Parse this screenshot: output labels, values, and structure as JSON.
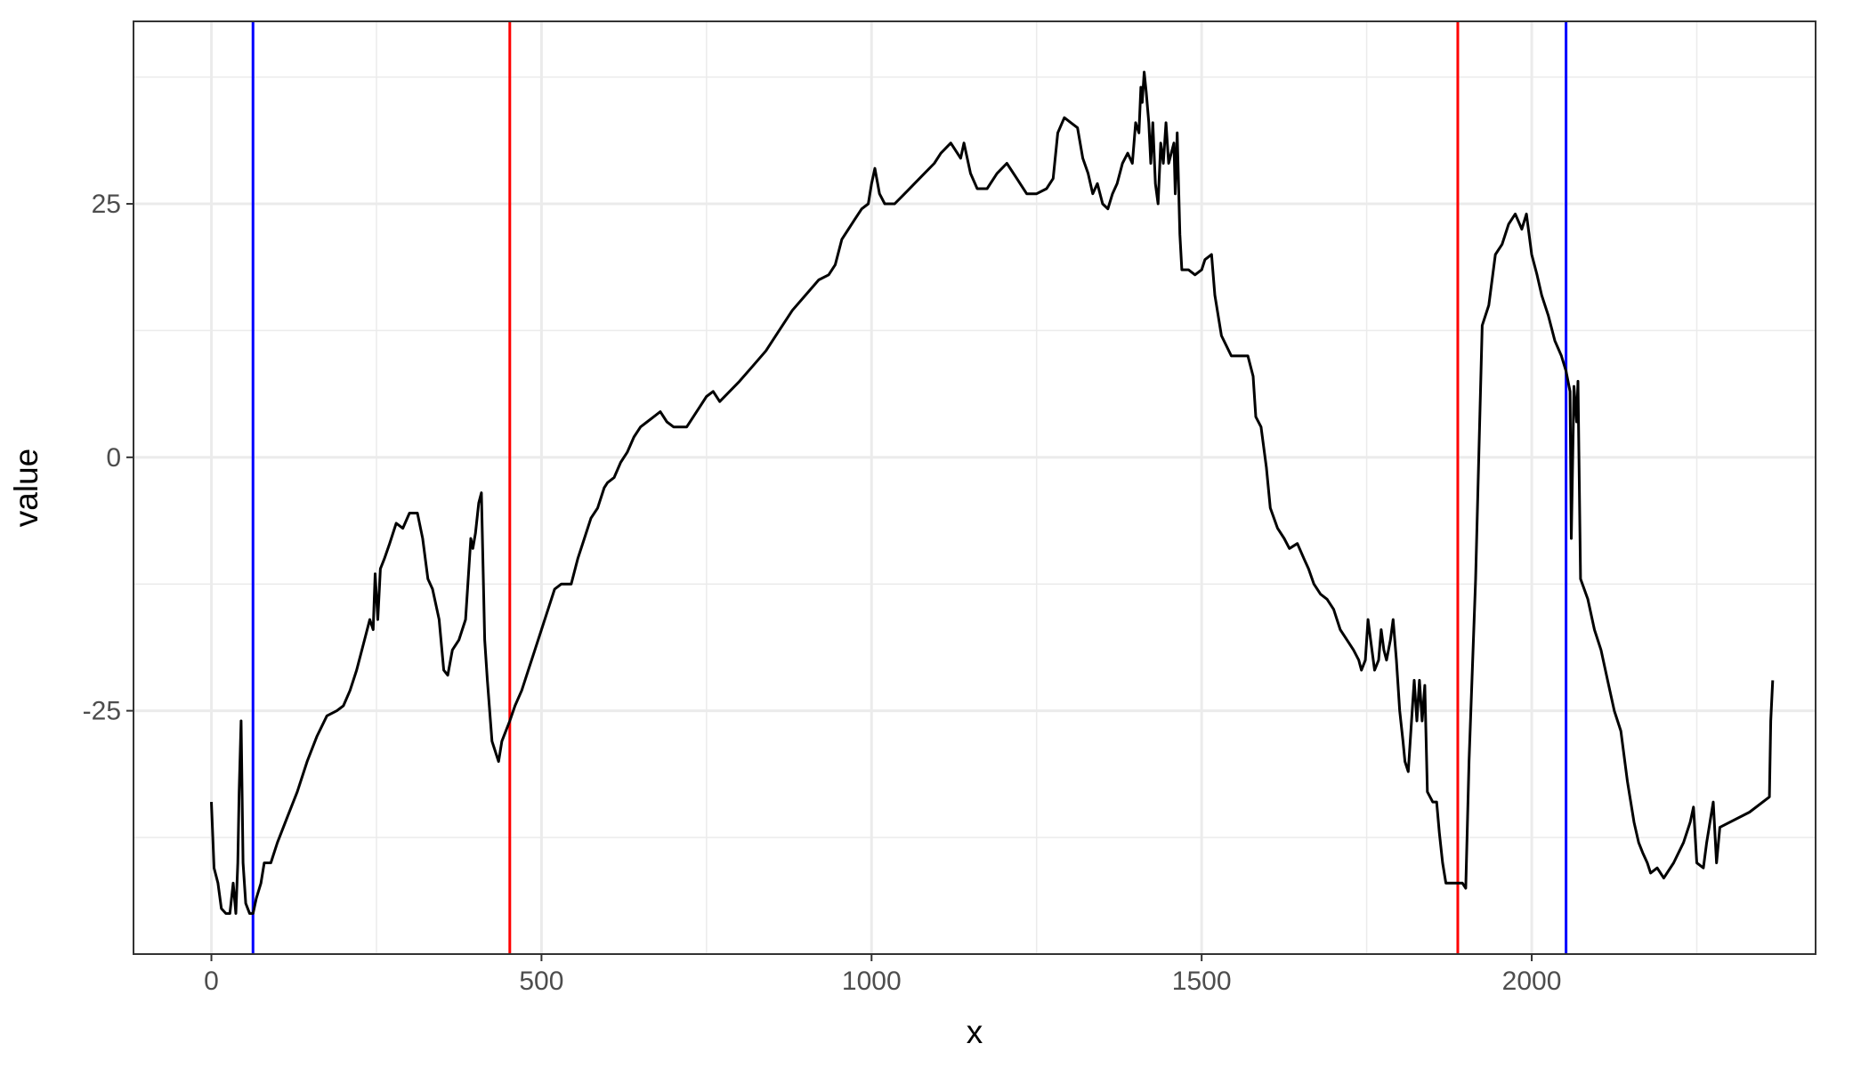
{
  "chart_data": {
    "type": "line",
    "title": "",
    "xlabel": "x",
    "ylabel": "value",
    "xlim": [
      -118,
      2430
    ],
    "ylim": [
      -49,
      43
    ],
    "x_ticks": [
      0,
      500,
      1000,
      1500,
      2000
    ],
    "x_tick_labels": [
      "0",
      "500",
      "1000",
      "1500",
      "2000"
    ],
    "y_ticks": [
      -25,
      0,
      25
    ],
    "y_tick_labels": [
      "-25",
      "0",
      "25"
    ],
    "x_minor_ticks": [
      250,
      750,
      1250,
      1750,
      2250
    ],
    "y_minor_ticks": [
      -37.5,
      -12.5,
      12.5,
      37.5
    ],
    "grid": true,
    "theme": "bw",
    "vlines": [
      {
        "x": 63,
        "color": "#0000ff"
      },
      {
        "x": 452,
        "color": "#ff0000"
      },
      {
        "x": 1888,
        "color": "#ff0000"
      },
      {
        "x": 2052,
        "color": "#0000ff"
      }
    ],
    "series": [
      {
        "color": "#000000",
        "points": [
          [
            0,
            -34
          ],
          [
            4,
            -40.5
          ],
          [
            10,
            -42
          ],
          [
            15,
            -44.5
          ],
          [
            22,
            -45
          ],
          [
            28,
            -45
          ],
          [
            33,
            -42
          ],
          [
            37,
            -45
          ],
          [
            40,
            -40
          ],
          [
            42,
            -33
          ],
          [
            45,
            -26
          ],
          [
            48,
            -40
          ],
          [
            52,
            -44
          ],
          [
            58,
            -45
          ],
          [
            63,
            -45
          ],
          [
            68,
            -43.5
          ],
          [
            75,
            -42
          ],
          [
            80,
            -40
          ],
          [
            90,
            -40
          ],
          [
            100,
            -38
          ],
          [
            115,
            -35.5
          ],
          [
            130,
            -33
          ],
          [
            145,
            -30
          ],
          [
            160,
            -27.5
          ],
          [
            175,
            -25.5
          ],
          [
            190,
            -25
          ],
          [
            200,
            -24.5
          ],
          [
            210,
            -23
          ],
          [
            220,
            -21
          ],
          [
            232,
            -18
          ],
          [
            240,
            -16
          ],
          [
            245,
            -17
          ],
          [
            248,
            -11.5
          ],
          [
            252,
            -16
          ],
          [
            256,
            -11
          ],
          [
            262,
            -10
          ],
          [
            270,
            -8.5
          ],
          [
            280,
            -6.5
          ],
          [
            290,
            -7
          ],
          [
            300,
            -5.5
          ],
          [
            312,
            -5.5
          ],
          [
            320,
            -8
          ],
          [
            328,
            -12
          ],
          [
            335,
            -13
          ],
          [
            345,
            -16
          ],
          [
            352,
            -21
          ],
          [
            358,
            -21.5
          ],
          [
            365,
            -19
          ],
          [
            375,
            -18
          ],
          [
            385,
            -16
          ],
          [
            390,
            -11
          ],
          [
            393,
            -8
          ],
          [
            396,
            -9
          ],
          [
            400,
            -7.5
          ],
          [
            405,
            -4.5
          ],
          [
            409,
            -3.5
          ],
          [
            414,
            -18
          ],
          [
            418,
            -22
          ],
          [
            425,
            -28
          ],
          [
            435,
            -30
          ],
          [
            440,
            -28
          ],
          [
            452,
            -26
          ],
          [
            460,
            -24.5
          ],
          [
            470,
            -23
          ],
          [
            480,
            -21
          ],
          [
            490,
            -19
          ],
          [
            500,
            -17
          ],
          [
            510,
            -15
          ],
          [
            520,
            -13
          ],
          [
            530,
            -12.5
          ],
          [
            545,
            -12.5
          ],
          [
            555,
            -10
          ],
          [
            565,
            -8
          ],
          [
            575,
            -6
          ],
          [
            585,
            -5
          ],
          [
            595,
            -3
          ],
          [
            600,
            -2.5
          ],
          [
            610,
            -2
          ],
          [
            620,
            -0.5
          ],
          [
            630,
            0.5
          ],
          [
            640,
            2
          ],
          [
            650,
            3
          ],
          [
            660,
            3.5
          ],
          [
            670,
            4
          ],
          [
            680,
            4.5
          ],
          [
            690,
            3.5
          ],
          [
            700,
            3
          ],
          [
            710,
            3
          ],
          [
            720,
            3
          ],
          [
            730,
            4
          ],
          [
            740,
            5
          ],
          [
            750,
            6
          ],
          [
            760,
            6.5
          ],
          [
            770,
            5.5
          ],
          [
            785,
            6.5
          ],
          [
            800,
            7.5
          ],
          [
            820,
            9
          ],
          [
            840,
            10.5
          ],
          [
            860,
            12.5
          ],
          [
            880,
            14.5
          ],
          [
            900,
            16
          ],
          [
            920,
            17.5
          ],
          [
            935,
            18
          ],
          [
            945,
            19
          ],
          [
            955,
            21.5
          ],
          [
            965,
            22.5
          ],
          [
            975,
            23.5
          ],
          [
            985,
            24.5
          ],
          [
            995,
            25
          ],
          [
            1000,
            27
          ],
          [
            1005,
            28.5
          ],
          [
            1012,
            26
          ],
          [
            1020,
            25
          ],
          [
            1035,
            25
          ],
          [
            1050,
            26
          ],
          [
            1065,
            27
          ],
          [
            1080,
            28
          ],
          [
            1095,
            29
          ],
          [
            1105,
            30
          ],
          [
            1120,
            31
          ],
          [
            1135,
            29.5
          ],
          [
            1140,
            31
          ],
          [
            1150,
            28
          ],
          [
            1160,
            26.5
          ],
          [
            1175,
            26.5
          ],
          [
            1190,
            28
          ],
          [
            1205,
            29
          ],
          [
            1220,
            27.5
          ],
          [
            1235,
            26
          ],
          [
            1250,
            26
          ],
          [
            1265,
            26.5
          ],
          [
            1275,
            27.5
          ],
          [
            1282,
            32
          ],
          [
            1292,
            33.5
          ],
          [
            1302,
            33
          ],
          [
            1312,
            32.5
          ],
          [
            1320,
            29.5
          ],
          [
            1328,
            28
          ],
          [
            1335,
            26
          ],
          [
            1342,
            27
          ],
          [
            1350,
            25
          ],
          [
            1358,
            24.5
          ],
          [
            1365,
            26
          ],
          [
            1372,
            27
          ],
          [
            1380,
            29
          ],
          [
            1388,
            30
          ],
          [
            1395,
            29
          ],
          [
            1400,
            33
          ],
          [
            1405,
            32
          ],
          [
            1408,
            36.5
          ],
          [
            1410,
            35
          ],
          [
            1413,
            38
          ],
          [
            1416,
            36
          ],
          [
            1420,
            33
          ],
          [
            1423,
            29
          ],
          [
            1426,
            33
          ],
          [
            1430,
            27
          ],
          [
            1434,
            25
          ],
          [
            1438,
            31
          ],
          [
            1442,
            29
          ],
          [
            1446,
            33
          ],
          [
            1450,
            29
          ],
          [
            1454,
            30
          ],
          [
            1458,
            31
          ],
          [
            1460,
            26
          ],
          [
            1463,
            32
          ],
          [
            1467,
            22
          ],
          [
            1470,
            18.5
          ],
          [
            1480,
            18.5
          ],
          [
            1490,
            18
          ],
          [
            1500,
            18.5
          ],
          [
            1505,
            19.5
          ],
          [
            1515,
            20
          ],
          [
            1520,
            16
          ],
          [
            1530,
            12
          ],
          [
            1545,
            10
          ],
          [
            1560,
            10
          ],
          [
            1570,
            10
          ],
          [
            1578,
            8
          ],
          [
            1582,
            4
          ],
          [
            1590,
            3
          ],
          [
            1598,
            -1
          ],
          [
            1604,
            -5
          ],
          [
            1615,
            -7
          ],
          [
            1625,
            -8
          ],
          [
            1633,
            -9
          ],
          [
            1645,
            -8.5
          ],
          [
            1655,
            -10
          ],
          [
            1662,
            -11
          ],
          [
            1670,
            -12.5
          ],
          [
            1680,
            -13.5
          ],
          [
            1690,
            -14
          ],
          [
            1700,
            -15
          ],
          [
            1710,
            -17
          ],
          [
            1720,
            -18
          ],
          [
            1730,
            -19
          ],
          [
            1738,
            -20
          ],
          [
            1742,
            -21
          ],
          [
            1748,
            -20
          ],
          [
            1752,
            -16
          ],
          [
            1758,
            -19
          ],
          [
            1762,
            -21
          ],
          [
            1768,
            -20
          ],
          [
            1772,
            -17
          ],
          [
            1776,
            -19
          ],
          [
            1780,
            -20
          ],
          [
            1786,
            -18
          ],
          [
            1790,
            -16
          ],
          [
            1795,
            -20
          ],
          [
            1800,
            -25
          ],
          [
            1805,
            -28
          ],
          [
            1808,
            -30
          ],
          [
            1813,
            -31
          ],
          [
            1818,
            -26
          ],
          [
            1822,
            -22
          ],
          [
            1826,
            -26
          ],
          [
            1830,
            -22
          ],
          [
            1834,
            -26
          ],
          [
            1838,
            -22.5
          ],
          [
            1842,
            -33
          ],
          [
            1850,
            -34
          ],
          [
            1856,
            -34
          ],
          [
            1860,
            -37
          ],
          [
            1865,
            -40
          ],
          [
            1870,
            -42
          ],
          [
            1880,
            -42
          ],
          [
            1888,
            -42
          ],
          [
            1895,
            -42
          ],
          [
            1900,
            -42.5
          ],
          [
            1905,
            -30
          ],
          [
            1915,
            -12
          ],
          [
            1925,
            13
          ],
          [
            1935,
            15
          ],
          [
            1945,
            20
          ],
          [
            1955,
            21
          ],
          [
            1965,
            23
          ],
          [
            1975,
            24
          ],
          [
            1985,
            22.5
          ],
          [
            1992,
            24
          ],
          [
            2000,
            20
          ],
          [
            2008,
            18
          ],
          [
            2015,
            16
          ],
          [
            2025,
            14
          ],
          [
            2035,
            11.5
          ],
          [
            2045,
            10
          ],
          [
            2052,
            8.5
          ],
          [
            2058,
            6.5
          ],
          [
            2060,
            -8
          ],
          [
            2064,
            7
          ],
          [
            2068,
            3.5
          ],
          [
            2070,
            7.5
          ],
          [
            2074,
            -12
          ],
          [
            2085,
            -14
          ],
          [
            2095,
            -17
          ],
          [
            2105,
            -19
          ],
          [
            2115,
            -22
          ],
          [
            2125,
            -25
          ],
          [
            2135,
            -27
          ],
          [
            2145,
            -32
          ],
          [
            2155,
            -36
          ],
          [
            2162,
            -38
          ],
          [
            2168,
            -39
          ],
          [
            2175,
            -40
          ],
          [
            2180,
            -41
          ],
          [
            2190,
            -40.5
          ],
          [
            2200,
            -41.5
          ],
          [
            2215,
            -40
          ],
          [
            2230,
            -38
          ],
          [
            2240,
            -36
          ],
          [
            2245,
            -34.5
          ],
          [
            2250,
            -40
          ],
          [
            2260,
            -40.5
          ],
          [
            2265,
            -38
          ],
          [
            2270,
            -36
          ],
          [
            2275,
            -34
          ],
          [
            2280,
            -40
          ],
          [
            2285,
            -36.5
          ],
          [
            2330,
            -35
          ],
          [
            2360,
            -33.5
          ],
          [
            2362,
            -26
          ],
          [
            2365,
            -22
          ]
        ]
      }
    ]
  }
}
